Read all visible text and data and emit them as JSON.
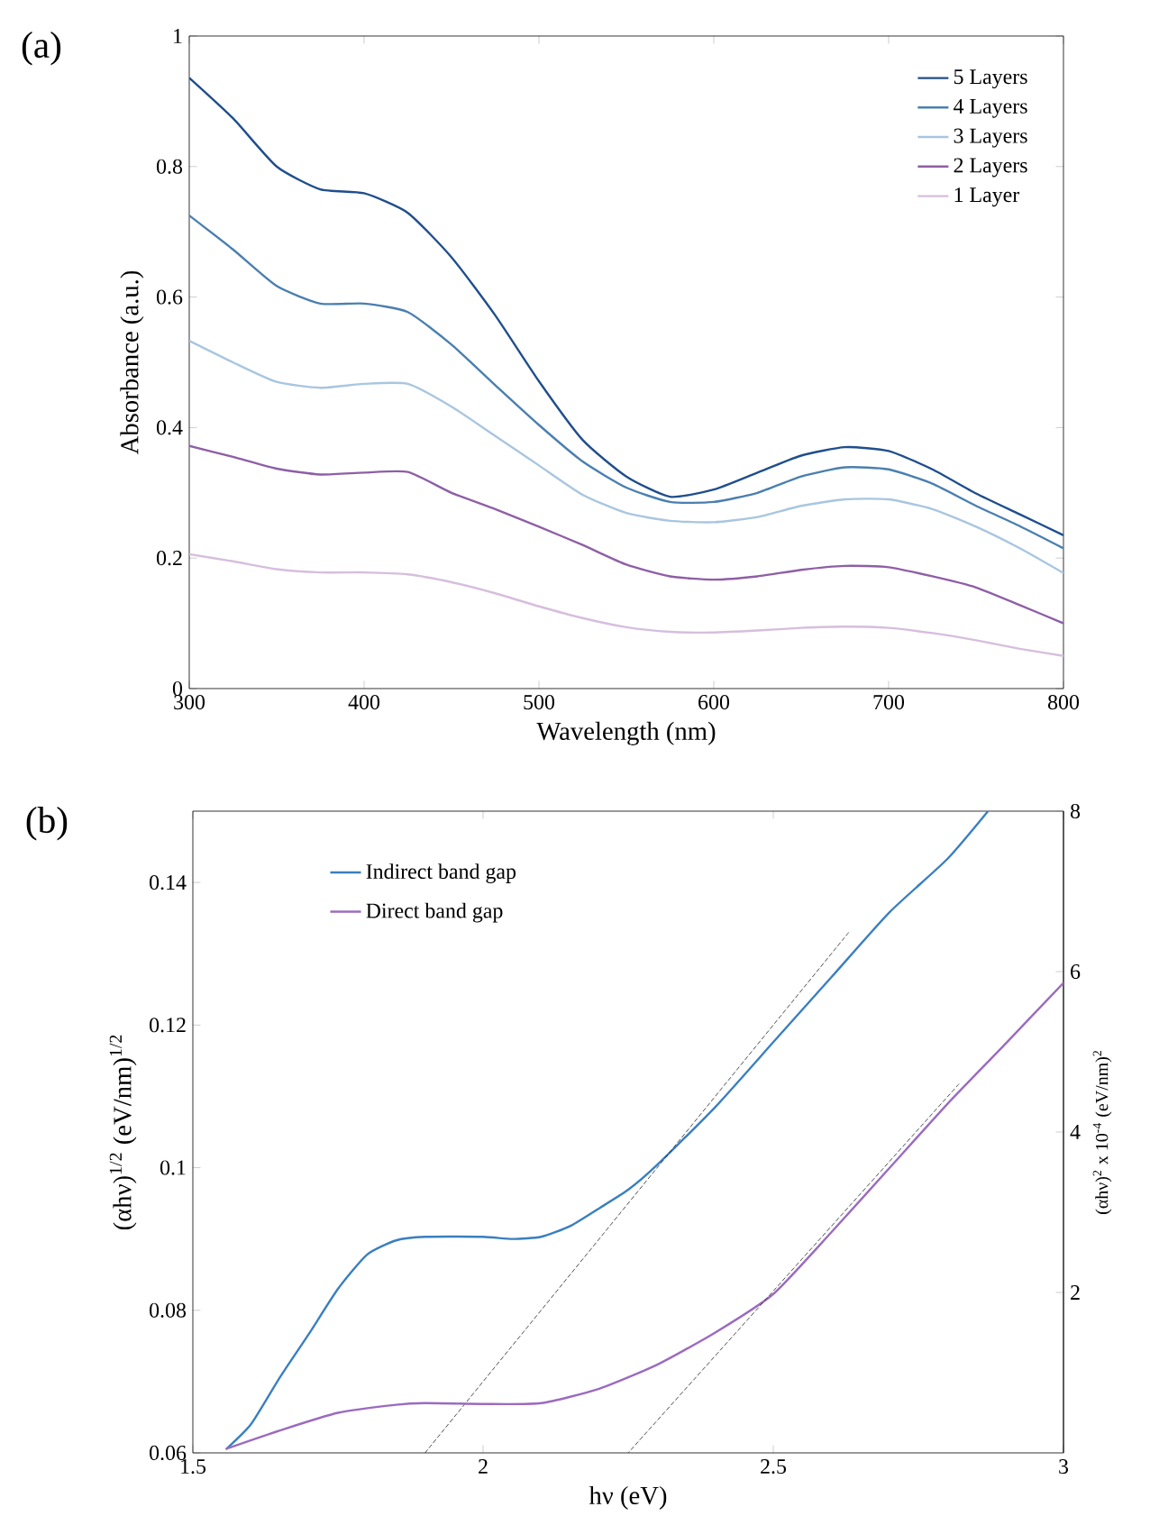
{
  "chart_data": [
    {
      "type": "line",
      "title": "(a)",
      "xlabel": "Wavelength (nm)",
      "ylabel": "Absorbance (a.u.)",
      "x": [
        300,
        325,
        350,
        375,
        400,
        425,
        450,
        475,
        500,
        525,
        550,
        575,
        600,
        625,
        650,
        675,
        700,
        725,
        750,
        775,
        800
      ],
      "xlim": [
        300,
        800
      ],
      "xticks": [
        300,
        400,
        500,
        600,
        700,
        800
      ],
      "ylim": [
        0,
        1
      ],
      "yticks": [
        0,
        0.2,
        0.4,
        0.6,
        0.8,
        1
      ],
      "legend": "top right",
      "marker": "none",
      "line_style": "solid",
      "series": [
        {
          "name": "5 Layers",
          "color": "#1f4e8c",
          "values": [
            0.936,
            0.874,
            0.8,
            0.765,
            0.759,
            0.729,
            0.661,
            0.572,
            0.471,
            0.381,
            0.325,
            0.294,
            0.305,
            0.331,
            0.357,
            0.37,
            0.364,
            0.336,
            0.299,
            0.267,
            0.235
          ]
        },
        {
          "name": "4 Layers",
          "color": "#4a7fb0",
          "values": [
            0.725,
            0.673,
            0.617,
            0.59,
            0.59,
            0.577,
            0.527,
            0.465,
            0.404,
            0.348,
            0.308,
            0.286,
            0.286,
            0.3,
            0.325,
            0.339,
            0.336,
            0.314,
            0.28,
            0.249,
            0.215
          ]
        },
        {
          "name": "3 Layers",
          "color": "#a8c6e0",
          "values": [
            0.533,
            0.5,
            0.47,
            0.461,
            0.467,
            0.467,
            0.432,
            0.387,
            0.342,
            0.297,
            0.269,
            0.257,
            0.255,
            0.263,
            0.28,
            0.29,
            0.29,
            0.275,
            0.248,
            0.215,
            0.177
          ]
        },
        {
          "name": "2 Layers",
          "color": "#8e5fa6",
          "values": [
            0.372,
            0.355,
            0.337,
            0.328,
            0.331,
            0.332,
            0.3,
            0.275,
            0.248,
            0.22,
            0.19,
            0.172,
            0.167,
            0.172,
            0.182,
            0.188,
            0.186,
            0.172,
            0.155,
            0.128,
            0.1
          ]
        },
        {
          "name": "1 Layer",
          "color": "#d6bedd",
          "values": [
            0.206,
            0.195,
            0.183,
            0.178,
            0.178,
            0.175,
            0.163,
            0.146,
            0.126,
            0.108,
            0.094,
            0.087,
            0.086,
            0.089,
            0.093,
            0.095,
            0.093,
            0.085,
            0.074,
            0.061,
            0.05
          ]
        }
      ]
    },
    {
      "type": "line",
      "title": "(b)",
      "xlabel": "hν (eV)",
      "ylabel": "(αhν)$^{1/2}$ (eV/nm)$^{1/2}$",
      "y2label": "(αhν)$^{2}$ x 10$^{-4}$ (eV/nm)$^{2}$",
      "xlim": [
        1.5,
        3
      ],
      "xticks": [
        1.5,
        2,
        2.5,
        3
      ],
      "ylim": [
        0.06,
        0.15
      ],
      "yticks": [
        0.06,
        0.08,
        0.1,
        0.12,
        0.14
      ],
      "y2lim": [
        0,
        8
      ],
      "y2ticks": [
        2,
        4,
        6,
        8
      ],
      "legend": "top left",
      "marker": "none",
      "line_style": "solid",
      "series": [
        {
          "name": "Indirect band gap",
          "color": "#3a7fbf",
          "x": [
            1.557,
            1.6,
            1.65,
            1.7,
            1.75,
            1.8,
            1.85,
            1.9,
            2.0,
            2.05,
            2.1,
            2.15,
            2.2,
            2.25,
            2.3,
            2.4,
            2.5,
            2.6,
            2.7,
            2.8,
            2.87
          ],
          "values": [
            0.0605,
            0.064,
            0.0706,
            0.0767,
            0.083,
            0.0878,
            0.0898,
            0.0903,
            0.0903,
            0.09,
            0.0903,
            0.0918,
            0.0943,
            0.0969,
            0.1004,
            0.1085,
            0.1176,
            0.1267,
            0.1358,
            0.1433,
            0.15
          ]
        },
        {
          "name": "Direct band gap",
          "color": "#9b6bbf",
          "axis": "y2",
          "x": [
            1.557,
            1.65,
            1.75,
            1.85,
            1.9,
            2.0,
            2.1,
            2.2,
            2.3,
            2.4,
            2.5,
            2.6,
            2.7,
            2.8,
            2.9,
            3.0
          ],
          "values": [
            0.05,
            0.28,
            0.5,
            0.6,
            0.62,
            0.61,
            0.62,
            0.8,
            1.1,
            1.5,
            1.98,
            2.75,
            3.55,
            4.35,
            5.1,
            5.86
          ]
        },
        {
          "type": "line",
          "color": "#222222",
          "line_style": "dashed",
          "x": [
            2.63,
            1.9
          ],
          "values": [
            0.133,
            0.06
          ]
        },
        {
          "type": "line",
          "color": "#222222",
          "line_style": "dashed",
          "axis": "y2",
          "x": [
            2.82,
            2.25
          ],
          "values": [
            4.6,
            0
          ]
        }
      ]
    }
  ]
}
